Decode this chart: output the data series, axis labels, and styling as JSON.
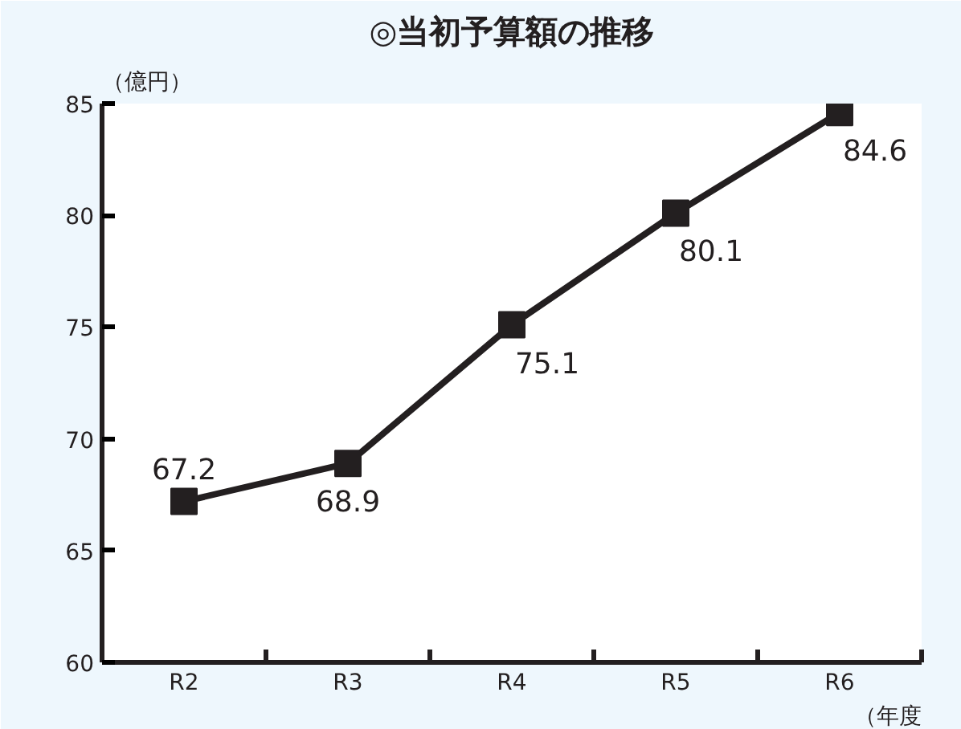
{
  "chart_data": {
    "type": "line",
    "title": "◎当初予算額の推移",
    "ylabel": "（億円）",
    "xlabel": "（年度",
    "categories": [
      "R2",
      "R3",
      "R4",
      "R5",
      "R6"
    ],
    "series": [
      {
        "color": "#231f20",
        "values": [
          67.2,
          68.9,
          75.1,
          80.1,
          84.6
        ]
      }
    ],
    "ylim": [
      60,
      85
    ],
    "yticks": [
      60,
      65,
      70,
      75,
      80,
      85
    ],
    "marker": "square",
    "line_style": "solid",
    "data_labels": true,
    "grid": false
  }
}
